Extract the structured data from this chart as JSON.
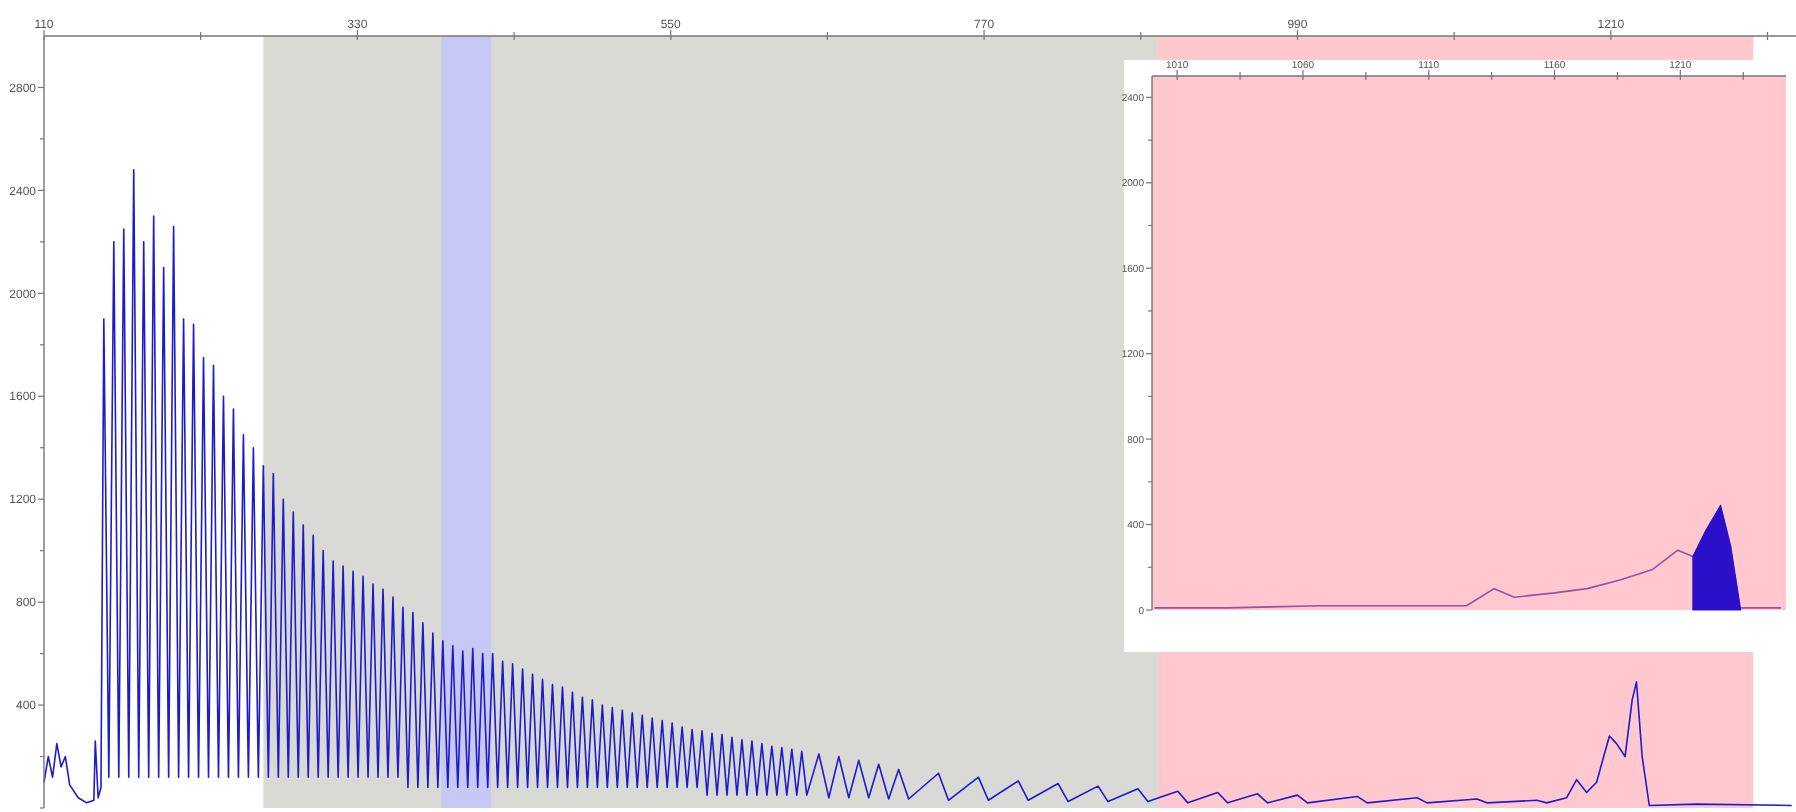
{
  "chart_data": [
    {
      "type": "line",
      "xlim": [
        110,
        1340
      ],
      "ylim": [
        0,
        3000
      ],
      "xticks": [
        110,
        {
          "value": 220,
          "label": null
        },
        330,
        {
          "value": 440,
          "label": null
        },
        550,
        {
          "value": 660,
          "label": null
        },
        770,
        {
          "value": 880,
          "label": null
        },
        990,
        {
          "value": 1100,
          "label": null
        },
        1210,
        {
          "value": 1320,
          "label": null
        }
      ],
      "yticks": [
        {
          "value": 0,
          "label": null
        },
        {
          "value": 200,
          "label": null
        },
        400,
        {
          "value": 600,
          "label": null
        },
        800,
        {
          "value": 1000,
          "label": null
        },
        1200,
        {
          "value": 1400,
          "label": null
        },
        1600,
        {
          "value": 1800,
          "label": null
        },
        2000,
        {
          "value": 2200,
          "label": null
        },
        2400,
        {
          "value": 2600,
          "label": null
        },
        2800
      ],
      "bands": [
        {
          "axis": "x",
          "from": 264,
          "to": 892,
          "color": "#d9d9d6"
        },
        {
          "axis": "x",
          "from": 389,
          "to": 424,
          "color": "#c8c8f5"
        },
        {
          "axis": "x",
          "from": 892,
          "to": 1310,
          "color": "#ffc8cf"
        }
      ],
      "series": [
        {
          "type": "line",
          "color": "#1c1ccc",
          "x": [
            110,
            113,
            116,
            119,
            122,
            125,
            128,
            134,
            140,
            145,
            146,
            148,
            150,
            152,
            155.5,
            159,
            162.5,
            166,
            169.5,
            173,
            176.5,
            180,
            183.5,
            187,
            190.5,
            194,
            197.5,
            201,
            204.5,
            208,
            211.5,
            215,
            218.5,
            222,
            225.5,
            229,
            232.5,
            236,
            239.5,
            243,
            246.5,
            250,
            253.5,
            257,
            260.5,
            264,
            267.5,
            271,
            274.5,
            278,
            281.5,
            285,
            288.5,
            292,
            295.5,
            299,
            302.5,
            306,
            309.5,
            313,
            316.5,
            320,
            323.5,
            327,
            330.5,
            334,
            337.5,
            341,
            344.5,
            348,
            351.5,
            355,
            358.5,
            362,
            365.5,
            369,
            372.5,
            376,
            379.5,
            383,
            386.5,
            390,
            393.5,
            397,
            400.5,
            404,
            407.5,
            411,
            414.5,
            418,
            421.5,
            425,
            428.5,
            432,
            435.5,
            439,
            442.5,
            446,
            449.5,
            453,
            456.5,
            460,
            463.5,
            467,
            470.5,
            474,
            477.5,
            481,
            484.5,
            488,
            491.5,
            495,
            498.5,
            502,
            505.5,
            509,
            512.5,
            516,
            519.5,
            523,
            526.5,
            530,
            533.5,
            537,
            540.5,
            544,
            547.5,
            551,
            554.5,
            558,
            561.5,
            565,
            568.5,
            572,
            575.5,
            579,
            582.5,
            586,
            589.5,
            593,
            596.5,
            600,
            603.5,
            607,
            610.5,
            614,
            617.5,
            621,
            624.5,
            628,
            631.5,
            635,
            638.5,
            642,
            645.5,
            654,
            661,
            668,
            675,
            682,
            689,
            696,
            703,
            710,
            717,
            738,
            745,
            766,
            773,
            794,
            801,
            822,
            829,
            850,
            857,
            878,
            885,
            906,
            913,
            934,
            941,
            962,
            969,
            990,
            997,
            1032,
            1039,
            1074,
            1081,
            1116,
            1123,
            1158,
            1165,
            1179,
            1186,
            1193,
            1200,
            1209,
            1214,
            1220,
            1225,
            1228,
            1232,
            1237,
            1270,
            1337
          ],
          "values": [
            100,
            200,
            120,
            250,
            160,
            200,
            90,
            40,
            20,
            30,
            260,
            40,
            80,
            1900,
            120,
            2200,
            120,
            2250,
            120,
            2480,
            120,
            2200,
            120,
            2300,
            120,
            2100,
            120,
            2260,
            120,
            1900,
            120,
            1880,
            120,
            1750,
            120,
            1720,
            120,
            1600,
            120,
            1550,
            120,
            1450,
            120,
            1400,
            120,
            1330,
            120,
            1300,
            120,
            1200,
            120,
            1150,
            120,
            1100,
            120,
            1060,
            120,
            1000,
            120,
            960,
            120,
            940,
            120,
            920,
            120,
            900,
            120,
            870,
            120,
            850,
            120,
            820,
            120,
            780,
            80,
            760,
            80,
            720,
            80,
            680,
            80,
            650,
            80,
            630,
            80,
            610,
            80,
            620,
            80,
            600,
            80,
            600,
            80,
            570,
            80,
            560,
            80,
            540,
            80,
            520,
            80,
            500,
            80,
            480,
            80,
            470,
            80,
            450,
            80,
            430,
            80,
            420,
            80,
            400,
            80,
            390,
            80,
            380,
            80,
            370,
            80,
            360,
            80,
            350,
            80,
            340,
            80,
            330,
            80,
            315,
            80,
            305,
            80,
            300,
            50,
            290,
            50,
            285,
            50,
            275,
            50,
            265,
            50,
            260,
            50,
            250,
            50,
            240,
            50,
            235,
            50,
            228,
            50,
            220,
            50,
            210,
            40,
            200,
            40,
            185,
            40,
            170,
            35,
            150,
            35,
            135,
            30,
            120,
            30,
            105,
            30,
            95,
            25,
            85,
            25,
            75,
            25,
            65,
            20,
            60,
            20,
            55,
            20,
            50,
            20,
            45,
            20,
            40,
            20,
            35,
            20,
            30,
            20,
            40,
            110,
            60,
            100,
            280,
            250,
            200,
            420,
            490,
            200,
            10,
            15,
            10
          ]
        }
      ]
    },
    {
      "type": "line",
      "xlim": [
        1000,
        1252
      ],
      "ylim": [
        0,
        2500
      ],
      "xticks": [
        1010,
        {
          "value": 1035,
          "label": null
        },
        1060,
        {
          "value": 1085,
          "label": null
        },
        1110,
        {
          "value": 1135,
          "label": null
        },
        1160,
        {
          "value": 1185,
          "label": null
        },
        1210,
        {
          "value": 1235,
          "label": null
        }
      ],
      "yticks": [
        0,
        {
          "value": 200,
          "label": null
        },
        400,
        {
          "value": 600,
          "label": null
        },
        800,
        {
          "value": 1000,
          "label": null
        },
        1200,
        {
          "value": 1400,
          "label": null
        },
        1600,
        {
          "value": 1800,
          "label": null
        },
        2000,
        {
          "value": 2200,
          "label": null
        },
        2400
      ],
      "bands": [
        {
          "axis": "x",
          "from": 1000,
          "to": 1252,
          "color": "#ffc8cf"
        }
      ],
      "series": [
        {
          "type": "line",
          "color": "#9a4fa8",
          "x": [
            1001,
            1030,
            1067,
            1100,
            1120,
            1125,
            1136,
            1144,
            1160,
            1173,
            1186,
            1199,
            1209,
            1215,
            1225,
            1234,
            1250
          ],
          "values": [
            10,
            10,
            20,
            20,
            20,
            20,
            100,
            60,
            80,
            100,
            140,
            190,
            280,
            250,
            null,
            10,
            10
          ]
        },
        {
          "type": "area",
          "color": "#2a10c8",
          "x": [
            1215,
            1220,
            1226,
            1230,
            1234
          ],
          "values": [
            250,
            370,
            490,
            300,
            0
          ]
        }
      ]
    }
  ]
}
